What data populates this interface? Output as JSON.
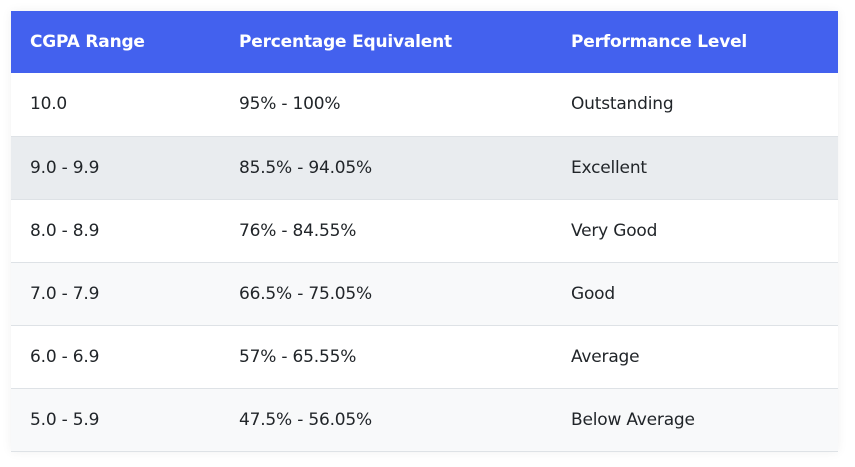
{
  "colors": {
    "header_bg": "#4361ee",
    "header_text": "#ffffff",
    "body_text": "#212529",
    "row_striped": "#f8f9fa",
    "row_highlight": "#e9ecef",
    "row_border": "#dee2e6"
  },
  "table": {
    "headers": [
      "CGPA Range",
      "Percentage Equivalent",
      "Performance Level"
    ],
    "rows": [
      {
        "cgpa": "10.0",
        "percentage": "95% - 100%",
        "level": "Outstanding",
        "style": "plain"
      },
      {
        "cgpa": "9.0 - 9.9",
        "percentage": "85.5% - 94.05%",
        "level": "Excellent",
        "style": "highlight"
      },
      {
        "cgpa": "8.0 - 8.9",
        "percentage": "76% - 84.55%",
        "level": "Very Good",
        "style": "plain"
      },
      {
        "cgpa": "7.0 - 7.9",
        "percentage": "66.5% - 75.05%",
        "level": "Good",
        "style": "striped"
      },
      {
        "cgpa": "6.0 - 6.9",
        "percentage": "57% - 65.55%",
        "level": "Average",
        "style": "plain"
      },
      {
        "cgpa": "5.0 - 5.9",
        "percentage": "47.5% - 56.05%",
        "level": "Below Average",
        "style": "striped"
      }
    ]
  }
}
